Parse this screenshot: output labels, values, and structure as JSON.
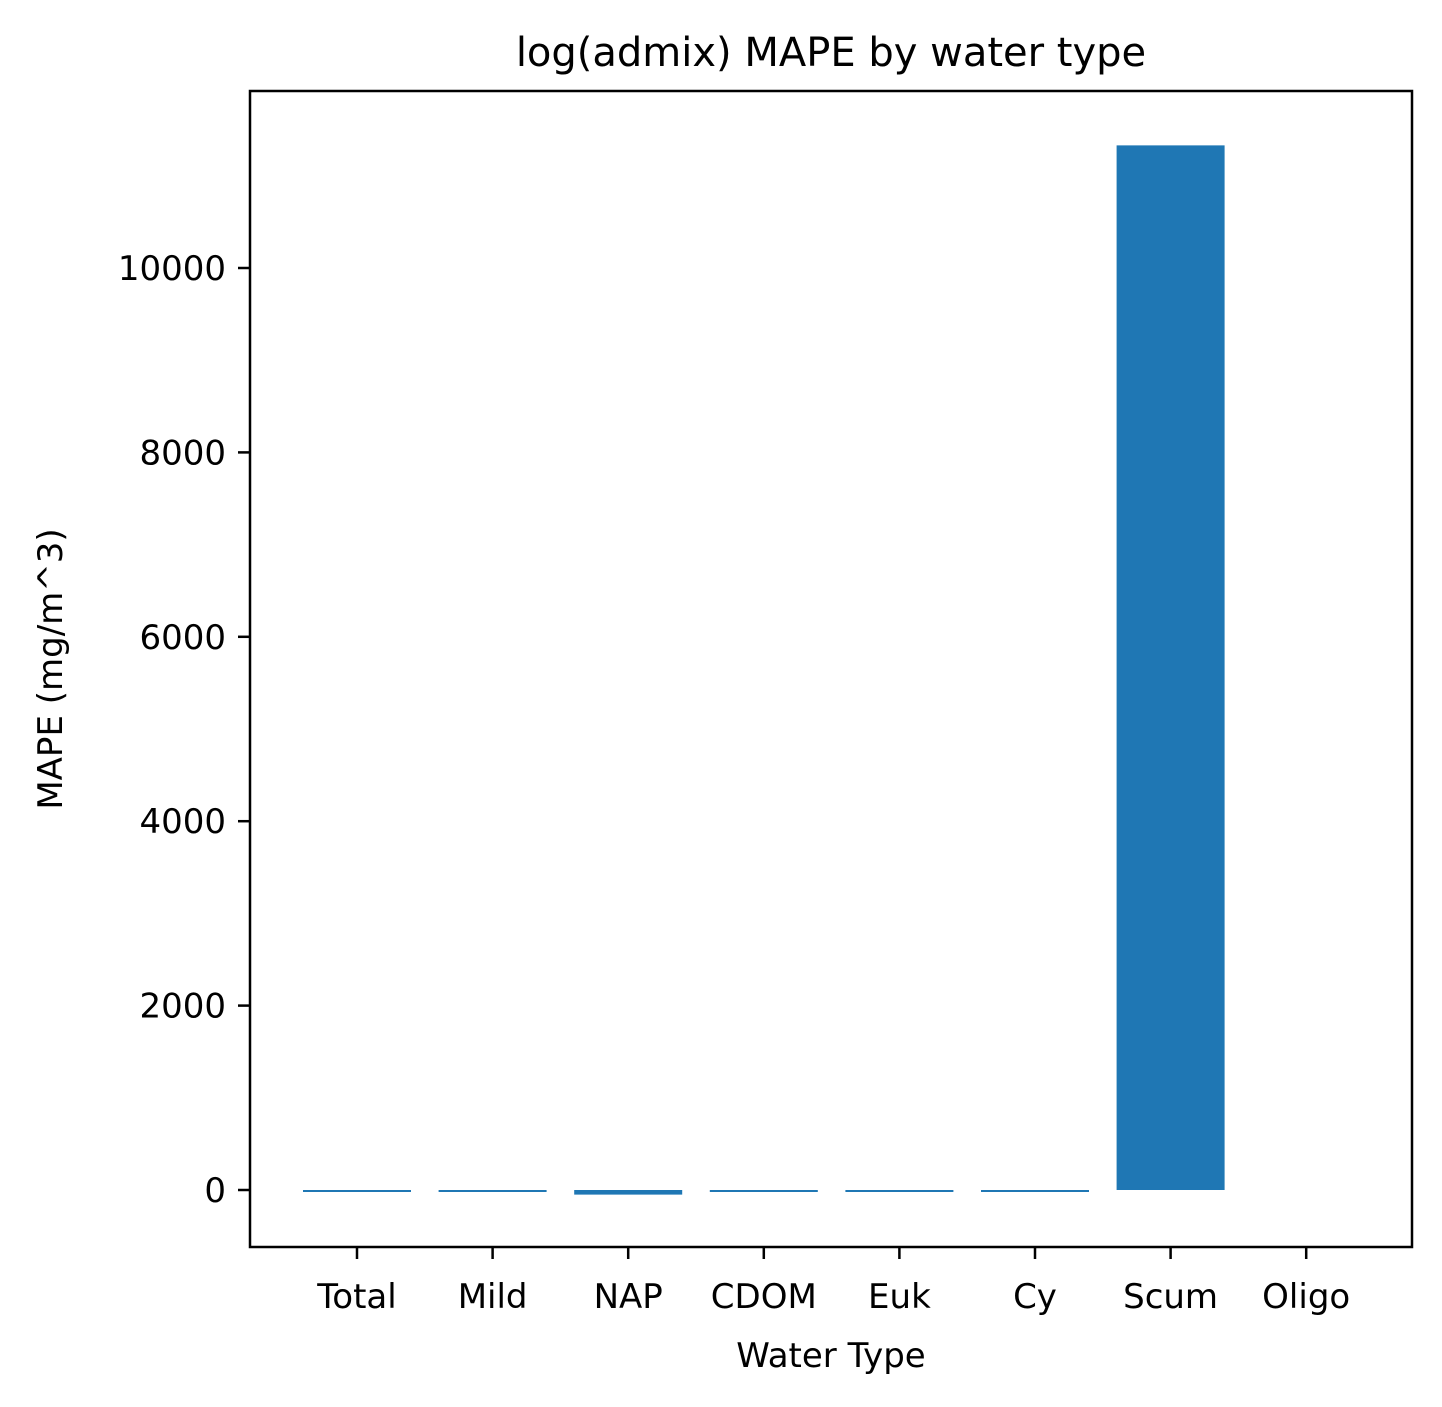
{
  "chart_data": {
    "type": "bar",
    "title": "log(admix) MAPE by water type",
    "xlabel": "Water Type",
    "ylabel": "MAPE (mg/m^3)",
    "categories": [
      "Total",
      "Mild",
      "NAP",
      "CDOM",
      "Euk",
      "Cy",
      "Scum",
      "Oligo"
    ],
    "values": [
      -15,
      -18,
      -50,
      -18,
      -6,
      -10,
      11330,
      0
    ],
    "ylim": [
      -620,
      11900
    ],
    "yticks": [
      0,
      2000,
      4000,
      6000,
      8000,
      10000
    ],
    "bar_color": "#1f77b4",
    "grid": false,
    "legend": "none"
  }
}
